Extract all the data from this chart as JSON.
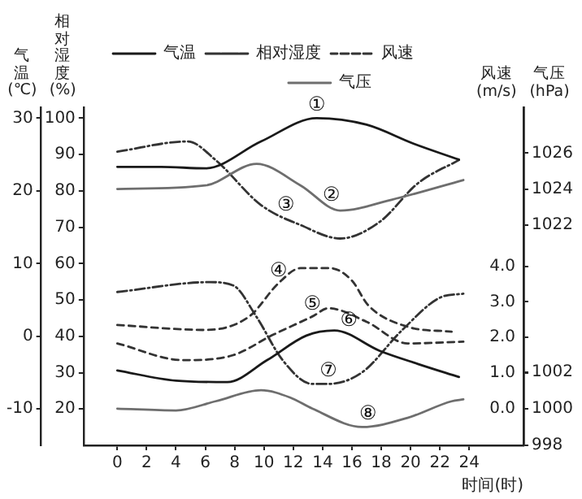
{
  "chart_data": [
    {
      "type": "line",
      "xlabel": "时间(时)",
      "ylabel": "气温(℃)",
      "y2label": "相对湿度(%)",
      "y3label": "风速(m/s)",
      "xlim": [
        -2.3,
        27.7
      ],
      "xticks": [
        0,
        2,
        4,
        6,
        8,
        10,
        12,
        14,
        16,
        18,
        20,
        22,
        24
      ],
      "ylim": [
        -15,
        31.5
      ],
      "yticks": [
        -10,
        0,
        10,
        20,
        30
      ],
      "y2lim": [
        10,
        103
      ],
      "y2ticks": [
        20,
        30,
        40,
        50,
        60,
        70,
        80,
        90,
        100
      ],
      "y3lim": [
        -1.04,
        8.48
      ],
      "y3ticks": [
        {
          "value": 0,
          "label": "0.0"
        },
        {
          "value": 1,
          "label": "1.0"
        },
        {
          "value": 2,
          "label": "2.0"
        },
        {
          "value": 3,
          "label": "3.0"
        },
        {
          "value": 4,
          "label": "4.0"
        }
      ],
      "legend": "top",
      "marker": "none",
      "grid": false,
      "series": [
        {
          "name": "气温",
          "color": "#1a1a1a",
          "line_style": "solid",
          "x": [
            0,
            3,
            6,
            9.8,
            13.6,
            17,
            20.2,
            23.3
          ],
          "values": [
            23.3,
            23.3,
            23.1,
            26.8,
            30.0,
            29.1,
            26.5,
            24.3
          ]
        },
        {
          "name": "相对湿度",
          "color": "#333333",
          "line_style": "dashdot",
          "axis": "y2",
          "x": [
            0,
            4.8,
            6.7,
            9.8,
            12.5,
            15.2,
            17.9,
            20.5,
            23.3
          ],
          "values": [
            90.8,
            93.6,
            88.5,
            76.1,
            70.6,
            66.9,
            71.5,
            82.1,
            88.5
          ]
        },
        {
          "name": "风速",
          "color": "#333333",
          "line_style": "dashed",
          "axis": "y3",
          "x": [
            0,
            6,
            9,
            11,
            12.5,
            14.5,
            16,
            17.1,
            19.8,
            22.8
          ],
          "values": [
            2.35,
            2.21,
            2.59,
            3.53,
            3.95,
            3.95,
            3.6,
            2.91,
            2.3,
            2.16
          ]
        },
        {
          "color": "#333333",
          "line_style": "dashed",
          "axis": "y3",
          "x": [
            0,
            4.5,
            7.9,
            10.6,
            13.3,
            14.4,
            17,
            19.8,
            23.6
          ],
          "values": [
            1.83,
            1.36,
            1.5,
            2.07,
            2.59,
            2.82,
            2.44,
            1.83,
            1.88
          ]
        },
        {
          "color": "#1a1a1a",
          "line_style": "solid",
          "x": [
            0,
            4,
            7.5,
            10.2,
            12.9,
            14.8,
            17.9,
            20.5,
            23.3
          ],
          "values": [
            -4.7,
            -6.1,
            -6.3,
            -3.3,
            0.1,
            0.8,
            -2.0,
            -3.8,
            -5.6
          ]
        },
        {
          "color": "#333333",
          "line_style": "dashdot",
          "axis": "y2",
          "x": [
            0,
            6.3,
            7.9,
            9.5,
            11.3,
            13.3,
            14.4,
            16.7,
            19.4,
            22.1,
            23.6
          ],
          "values": [
            52.2,
            54.9,
            54.0,
            45.3,
            33.3,
            26.9,
            26.9,
            30.1,
            41.6,
            50.8,
            51.7
          ]
        }
      ],
      "annotations": [
        {
          "text": "①",
          "x": 13.6,
          "y": 30.0
        },
        {
          "text": "③",
          "x": 11.5,
          "y": 16.2
        },
        {
          "text": "④",
          "x": 11,
          "y": 7.2
        },
        {
          "text": "⑤",
          "x": 13.3,
          "y": 2.6
        },
        {
          "text": "⑥",
          "x": 15.8,
          "y": 0.3
        },
        {
          "text": "⑦",
          "x": 14.4,
          "y": -6.6
        }
      ]
    },
    {
      "type": "line",
      "ylabel": "气压(hPa)",
      "xlim": [
        -2.3,
        27.7
      ],
      "ylim": [
        1009.7,
        1028.56
      ],
      "yticks": [
        1022,
        1024,
        1026
      ],
      "tick_labels": "y",
      "legend": "top",
      "marker": "none",
      "grid": false,
      "series": [
        {
          "name": "气压",
          "color": "#6e6e6e",
          "line_style": "solid",
          "x": [
            0,
            6,
            9.5,
            12.5,
            15.2,
            18.7,
            23.6
          ],
          "values": [
            1024.0,
            1024.2,
            1025.4,
            1024.2,
            1022.8,
            1023.4,
            1024.5
          ]
        }
      ],
      "annotations": [
        {
          "text": "②",
          "x": 14.6,
          "y": 1022.9
        }
      ]
    },
    {
      "type": "line",
      "xlim": [
        -2.3,
        27.7
      ],
      "ylim": [
        998,
        1016.4
      ],
      "yticks": [
        998,
        1000,
        1002
      ],
      "tick_labels": "y",
      "marker": "none",
      "grid": false,
      "series": [
        {
          "color": "#6e6e6e",
          "line_style": "solid",
          "x": [
            0,
            4,
            6.7,
            9.8,
            11.8,
            13.3,
            16.7,
            19.8,
            22.8,
            23.6
          ],
          "values": [
            1000.0,
            999.9,
            1000.4,
            1001.0,
            1000.6,
            1000.0,
            999.0,
            999.5,
            1000.4,
            1000.5
          ]
        }
      ],
      "annotations": [
        {
          "text": "⑧",
          "x": 17.1,
          "y": 999.0
        }
      ]
    }
  ]
}
